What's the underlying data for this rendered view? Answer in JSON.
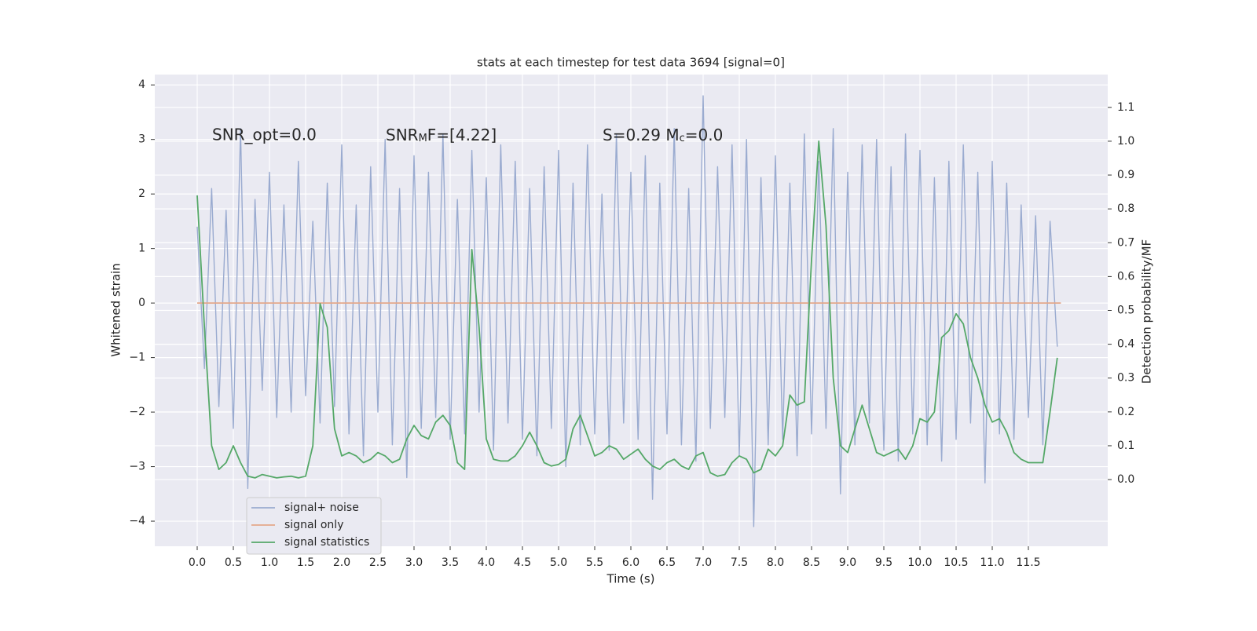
{
  "chart_data": {
    "type": "line",
    "title": "stats at each timestep for test data 3694 [signal=0]",
    "xlabel": "Time (s)",
    "ylabel": "Whitened strain",
    "y2label": "Detection probability/MF",
    "annotations": [
      "SNR_opt=0.0",
      [
        "SNR",
        "M",
        "F=[4.22]"
      ],
      [
        "S=0.29   M",
        "c",
        "=0.0"
      ]
    ],
    "xlim": [
      -0.587,
      12.598
    ],
    "ylim": [
      -4.46,
      4.19
    ],
    "y2lim": [
      -0.197,
      1.197
    ],
    "xticks": [
      {
        "value": 0,
        "label": "0.0"
      },
      0.5,
      {
        "value": 1,
        "label": "1.0"
      },
      1.5,
      {
        "value": 2,
        "label": "2.0"
      },
      2.5,
      {
        "value": 3,
        "label": "3.0"
      },
      3.5,
      {
        "value": 4,
        "label": "4.0"
      },
      4.5,
      {
        "value": 5,
        "label": "5.0"
      },
      5.5,
      {
        "value": 6,
        "label": "6.0"
      },
      6.5,
      {
        "value": 7,
        "label": "7.0"
      },
      7.5,
      {
        "value": 8,
        "label": "8.0"
      },
      8.5,
      {
        "value": 9,
        "label": "9.0"
      },
      9.5,
      {
        "value": 10,
        "label": "10.0"
      },
      10.5,
      {
        "value": 11,
        "label": "11.0"
      },
      11.5
    ],
    "yticks": [
      {
        "value": -4,
        "label": "−4"
      },
      {
        "value": -3,
        "label": "−3"
      },
      {
        "value": -2,
        "label": "−2"
      },
      {
        "value": -1,
        "label": "−1"
      },
      0,
      1,
      2,
      3,
      4
    ],
    "y2ticks": [
      {
        "value": 0,
        "label": "0.0"
      },
      0.1,
      0.2,
      0.3,
      0.4,
      0.5,
      0.6,
      0.7,
      0.8,
      0.9,
      {
        "value": 1,
        "label": "1.0"
      },
      1.1
    ],
    "grid": true,
    "legend": "lower left",
    "x": [
      0,
      0.1,
      0.2,
      0.3,
      0.4,
      0.5,
      0.6,
      0.7,
      0.8,
      0.9,
      1,
      1.1,
      1.2,
      1.3,
      1.4,
      1.5,
      1.6,
      1.7,
      1.8,
      1.9,
      2,
      2.1,
      2.2,
      2.3,
      2.4,
      2.5,
      2.6,
      2.7,
      2.8,
      2.9,
      3,
      3.1,
      3.2,
      3.3,
      3.4,
      3.5,
      3.6,
      3.7,
      3.8,
      3.9,
      4,
      4.1,
      4.2,
      4.3,
      4.4,
      4.5,
      4.6,
      4.7,
      4.8,
      4.9,
      5,
      5.1,
      5.2,
      5.3,
      5.4,
      5.5,
      5.6,
      5.7,
      5.8,
      5.9,
      6,
      6.1,
      6.2,
      6.3,
      6.4,
      6.5,
      6.6,
      6.7,
      6.8,
      6.9,
      7,
      7.1,
      7.2,
      7.3,
      7.4,
      7.5,
      7.6,
      7.7,
      7.8,
      7.9,
      8,
      8.1,
      8.2,
      8.3,
      8.4,
      8.5,
      8.6,
      8.7,
      8.8,
      8.9,
      9,
      9.1,
      9.2,
      9.3,
      9.4,
      9.5,
      9.6,
      9.7,
      9.8,
      9.9,
      10,
      10.1,
      10.2,
      10.3,
      10.4,
      10.5,
      10.6,
      10.7,
      10.8,
      10.9,
      11,
      11.1,
      11.2,
      11.3,
      11.4,
      11.5,
      11.6,
      11.7,
      11.8,
      11.9
    ],
    "series": [
      {
        "name": "signal+ noise",
        "color": "#9aabd0",
        "values": [
          1.4,
          -1.2,
          2.1,
          -1.9,
          1.7,
          -2.3,
          3.2,
          -3.4,
          1.9,
          -1.6,
          2.4,
          -2.1,
          1.8,
          -2.0,
          2.6,
          -1.7,
          1.5,
          -2.2,
          2.2,
          -1.9,
          2.9,
          -2.4,
          1.8,
          -2.8,
          2.5,
          -2.0,
          3.0,
          -2.6,
          2.1,
          -3.2,
          2.7,
          -2.3,
          2.4,
          -2.1,
          3.1,
          -2.5,
          1.9,
          -2.4,
          2.8,
          -2.0,
          2.3,
          -2.7,
          2.9,
          -2.2,
          2.6,
          -2.5,
          2.1,
          -2.8,
          2.5,
          -2.3,
          2.8,
          -3.0,
          2.2,
          -2.6,
          2.9,
          -2.4,
          2.0,
          -2.7,
          3.1,
          -2.2,
          2.4,
          -2.5,
          2.7,
          -3.6,
          2.2,
          -2.4,
          3.2,
          -2.6,
          2.1,
          -2.9,
          3.8,
          -2.3,
          2.5,
          -2.1,
          2.9,
          -2.8,
          3.0,
          -4.1,
          2.3,
          -2.6,
          2.7,
          -2.5,
          2.2,
          -2.8,
          3.1,
          -2.4,
          2.6,
          -2.3,
          3.2,
          -3.5,
          2.4,
          -2.6,
          2.9,
          -2.2,
          3.0,
          -2.7,
          2.5,
          -2.9,
          3.1,
          -2.4,
          2.8,
          -2.6,
          2.3,
          -2.9,
          2.6,
          -2.5,
          2.9,
          -2.2,
          2.4,
          -3.3,
          2.6,
          -2.4,
          2.2,
          -2.5,
          1.8,
          -2.1,
          1.6,
          -2.6,
          1.5,
          -0.8
        ]
      },
      {
        "name": "signal only",
        "color": "#e4a88a",
        "x": [
          0,
          11.95
        ],
        "values": [
          0,
          0
        ]
      },
      {
        "name": "signal statistics",
        "color": "#55a868",
        "axis": "y2",
        "values": [
          0.84,
          0.45,
          0.1,
          0.03,
          0.05,
          0.1,
          0.05,
          0.01,
          0.005,
          0.015,
          0.01,
          0.005,
          0.008,
          0.01,
          0.005,
          0.01,
          0.1,
          0.52,
          0.45,
          0.15,
          0.07,
          0.08,
          0.07,
          0.05,
          0.06,
          0.08,
          0.07,
          0.05,
          0.06,
          0.12,
          0.16,
          0.13,
          0.12,
          0.17,
          0.19,
          0.16,
          0.05,
          0.03,
          0.68,
          0.45,
          0.12,
          0.06,
          0.055,
          0.055,
          0.07,
          0.1,
          0.14,
          0.1,
          0.05,
          0.04,
          0.045,
          0.06,
          0.15,
          0.19,
          0.13,
          0.07,
          0.08,
          0.1,
          0.09,
          0.06,
          0.075,
          0.09,
          0.06,
          0.04,
          0.03,
          0.05,
          0.06,
          0.04,
          0.03,
          0.07,
          0.08,
          0.02,
          0.01,
          0.015,
          0.05,
          0.07,
          0.06,
          0.02,
          0.03,
          0.09,
          0.07,
          0.1,
          0.25,
          0.22,
          0.23,
          0.65,
          1.0,
          0.75,
          0.3,
          0.1,
          0.08,
          0.15,
          0.22,
          0.15,
          0.08,
          0.07,
          0.08,
          0.09,
          0.06,
          0.1,
          0.18,
          0.17,
          0.2,
          0.42,
          0.44,
          0.49,
          0.46,
          0.36,
          0.3,
          0.22,
          0.17,
          0.18,
          0.14,
          0.08,
          0.06,
          0.05,
          0.05,
          0.05,
          0.2,
          0.36
        ]
      }
    ]
  }
}
